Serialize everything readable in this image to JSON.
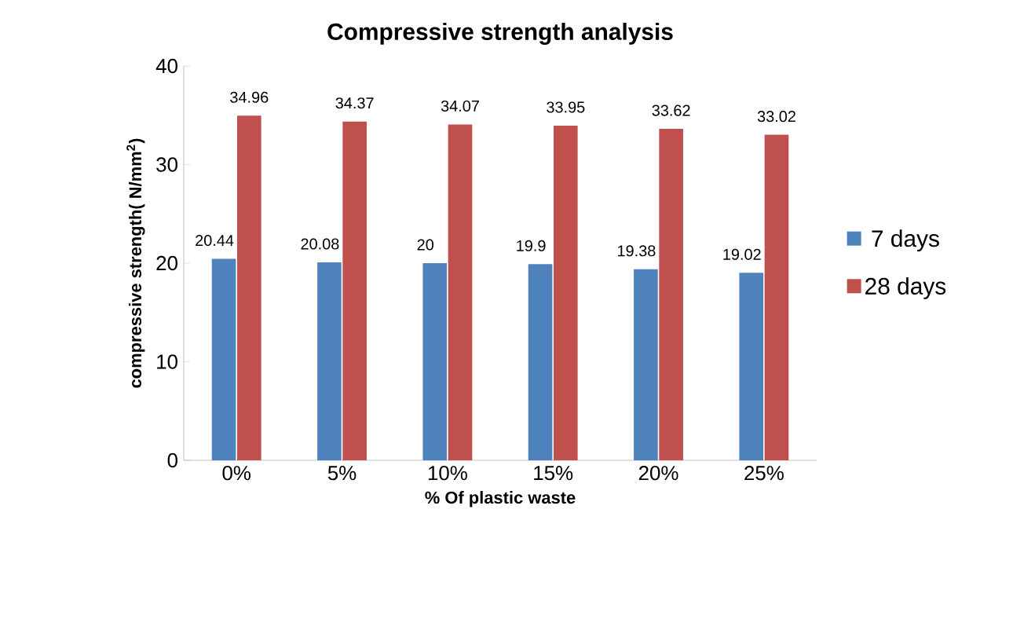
{
  "chart_data": {
    "type": "bar",
    "title": "Compressive strength analysis",
    "xlabel": "% Of plastic waste",
    "ylabel": "compressive strength( N/mm$^{2}$)",
    "categories": [
      "0%",
      "5%",
      "10%",
      "15%",
      "20%",
      "25%"
    ],
    "series": [
      {
        "name": "7 days",
        "color": "#4f81bd",
        "values": [
          20.44,
          20.08,
          20,
          19.9,
          19.38,
          19.02
        ]
      },
      {
        "name": "28 days",
        "color": "#c0504d",
        "values": [
          34.96,
          34.37,
          34.07,
          33.95,
          33.62,
          33.02
        ]
      }
    ],
    "ylim": [
      0,
      40
    ],
    "yticks": [
      0,
      10,
      20,
      30,
      40
    ],
    "data_labels": true,
    "legend": "right"
  }
}
